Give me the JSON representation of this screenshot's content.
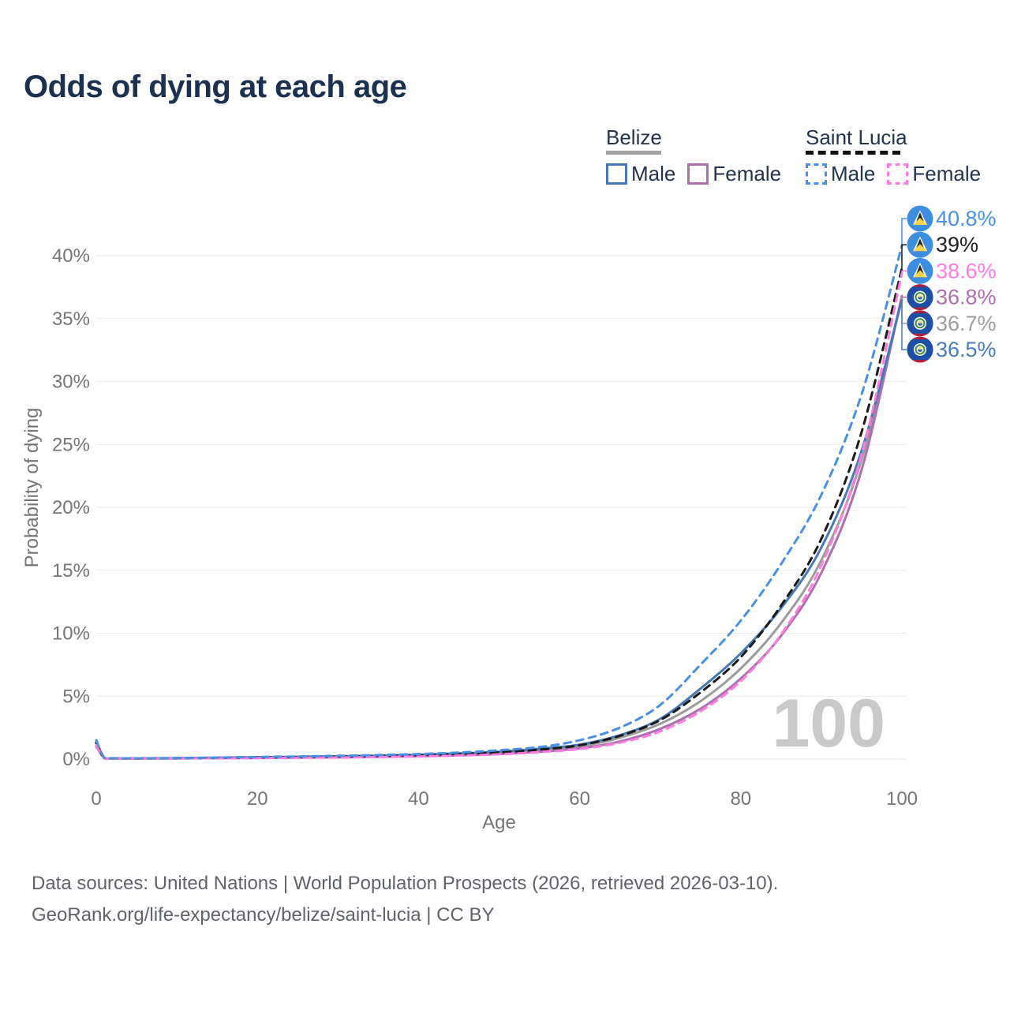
{
  "title": "Odds of dying at each age",
  "legend": {
    "groups": [
      {
        "label": "Belize",
        "line_style": "solid",
        "underline_color": "#a3a3a3",
        "items": [
          {
            "label": "Male",
            "color": "#4878b4",
            "dash": false
          },
          {
            "label": "Female",
            "color": "#ad6fad",
            "dash": false
          }
        ]
      },
      {
        "label": "Saint Lucia",
        "line_style": "dashed",
        "underline_color": "#111111",
        "items": [
          {
            "label": "Male",
            "color": "#4a90e2",
            "dash": true
          },
          {
            "label": "Female",
            "color": "#ff7ce1",
            "dash": true
          }
        ]
      }
    ]
  },
  "footer": {
    "line1": "Data sources: United Nations | World Population Prospects (2026, retrieved 2026-03-10).",
    "line2": "GeoRank.org/life-expectancy/belize/saint-lucia | CC BY"
  },
  "chart_data": {
    "type": "line",
    "title": "Odds of dying at each age",
    "xlabel": "Age",
    "ylabel": "Probability of dying",
    "xlim": [
      0,
      100
    ],
    "ylim_pct": [
      0,
      43
    ],
    "xticks": [
      0,
      20,
      40,
      60,
      80,
      100
    ],
    "yticks_pct": [
      0,
      5,
      10,
      15,
      20,
      25,
      30,
      35,
      40
    ],
    "grid": "horizontal",
    "legend_position": "top-right",
    "watermark": "100",
    "x_ages": [
      0,
      1,
      2,
      5,
      10,
      15,
      20,
      25,
      30,
      35,
      40,
      45,
      50,
      55,
      60,
      65,
      70,
      75,
      80,
      85,
      90,
      95,
      100
    ],
    "series": [
      {
        "name": "Saint Lucia Male",
        "country": "Saint Lucia",
        "sex": "Male",
        "color": "#4a90e2",
        "label_color": "#4a90e2",
        "dash": true,
        "flag": "saint-lucia",
        "end_label": "40.8%",
        "end_value": 40.8,
        "values_pct": [
          1.5,
          0.1,
          0.07,
          0.06,
          0.08,
          0.12,
          0.17,
          0.21,
          0.26,
          0.32,
          0.4,
          0.52,
          0.7,
          0.95,
          1.5,
          2.5,
          4.3,
          7.5,
          11.0,
          15.5,
          21.0,
          29.0,
          40.8
        ]
      },
      {
        "name": "Saint Lucia Both sexes",
        "country": "Saint Lucia",
        "sex": "Both",
        "color": "#1a1a1a",
        "label_color": "#222222",
        "dash": true,
        "flag": "saint-lucia",
        "end_label": "39%",
        "end_value": 39.0,
        "values_pct": [
          1.3,
          0.09,
          0.06,
          0.05,
          0.07,
          0.1,
          0.13,
          0.16,
          0.2,
          0.25,
          0.31,
          0.41,
          0.54,
          0.75,
          1.1,
          1.85,
          3.1,
          5.3,
          8.1,
          12.2,
          17.5,
          26.0,
          39.0
        ]
      },
      {
        "name": "Saint Lucia Female",
        "country": "Saint Lucia",
        "sex": "Female",
        "color": "#ff7ce1",
        "label_color": "#ff7ce1",
        "dash": true,
        "flag": "saint-lucia",
        "end_label": "38.6%",
        "end_value": 38.6,
        "values_pct": [
          1.1,
          0.08,
          0.05,
          0.04,
          0.05,
          0.07,
          0.09,
          0.11,
          0.13,
          0.17,
          0.21,
          0.28,
          0.38,
          0.55,
          0.8,
          1.3,
          2.2,
          3.8,
          6.2,
          9.9,
          15.4,
          24.2,
          38.6
        ]
      },
      {
        "name": "Belize Female",
        "country": "Belize",
        "sex": "Female",
        "color": "#ad6fad",
        "label_color": "#ad6fad",
        "dash": false,
        "flag": "belize",
        "end_label": "36.8%",
        "end_value": 36.8,
        "values_pct": [
          1.0,
          0.07,
          0.05,
          0.04,
          0.05,
          0.07,
          0.09,
          0.11,
          0.14,
          0.17,
          0.22,
          0.29,
          0.4,
          0.58,
          0.85,
          1.4,
          2.4,
          4.0,
          6.4,
          9.8,
          14.8,
          23.0,
          36.8
        ]
      },
      {
        "name": "Belize Both sexes",
        "country": "Belize",
        "sex": "Both",
        "color": "#9b9b9b",
        "label_color": "#9e9e9e",
        "dash": false,
        "flag": "belize",
        "end_label": "36.7%",
        "end_value": 36.7,
        "values_pct": [
          1.2,
          0.08,
          0.05,
          0.05,
          0.06,
          0.09,
          0.12,
          0.15,
          0.18,
          0.22,
          0.28,
          0.37,
          0.48,
          0.7,
          1.0,
          1.7,
          2.8,
          4.6,
          7.2,
          10.8,
          15.8,
          23.8,
          36.7
        ]
      },
      {
        "name": "Belize Male",
        "country": "Belize",
        "sex": "Male",
        "color": "#4878b4",
        "label_color": "#4a7ab8",
        "dash": false,
        "flag": "belize",
        "end_label": "36.5%",
        "end_value": 36.5,
        "values_pct": [
          1.4,
          0.09,
          0.06,
          0.06,
          0.08,
          0.11,
          0.15,
          0.18,
          0.22,
          0.27,
          0.34,
          0.45,
          0.58,
          0.82,
          1.15,
          1.9,
          3.2,
          5.6,
          8.4,
          12.0,
          16.8,
          24.5,
          36.5
        ]
      }
    ],
    "flag_colors": {
      "saint_lucia_blue": "#3d8ee0",
      "saint_lucia_yellow": "#fcd34d",
      "saint_lucia_black": "#222222",
      "belize_blue": "#1d50a5",
      "belize_red": "#b01e3c",
      "belize_green": "#3e8e41"
    }
  }
}
